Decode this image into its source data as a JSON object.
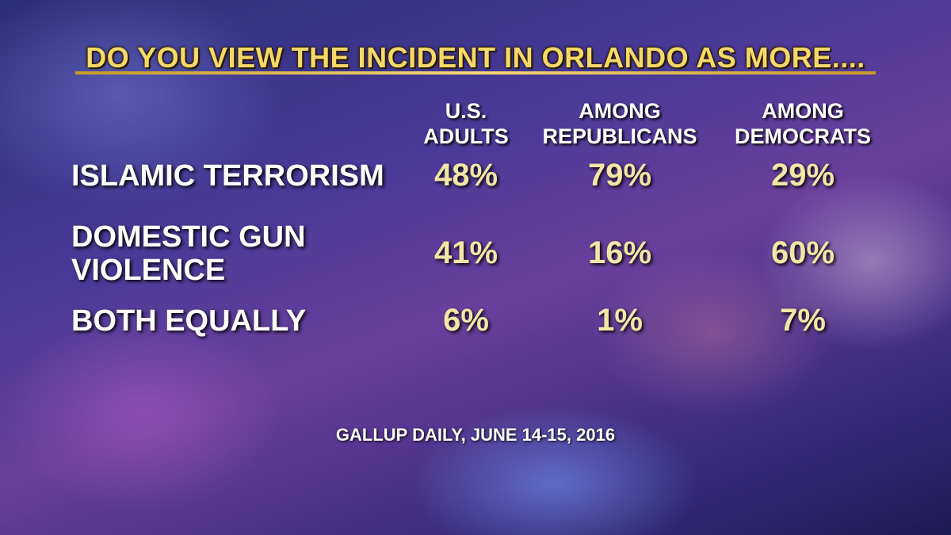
{
  "title": "DO YOU VIEW THE INCIDENT IN ORLANDO AS MORE....",
  "table": {
    "columns": [
      [
        "U.S.",
        "ADULTS"
      ],
      [
        "AMONG",
        "REPUBLICANS"
      ],
      [
        "AMONG",
        "DEMOCRATS"
      ]
    ],
    "rows": [
      {
        "label": [
          "ISLAMIC TERRORISM"
        ],
        "values": [
          "48%",
          "79%",
          "29%"
        ]
      },
      {
        "label": [
          "DOMESTIC GUN",
          "VIOLENCE"
        ],
        "values": [
          "41%",
          "16%",
          "60%"
        ]
      },
      {
        "label": [
          "BOTH EQUALLY"
        ],
        "values": [
          "6%",
          "1%",
          "7%"
        ]
      }
    ]
  },
  "source": "GALLUP DAILY, JUNE 14-15, 2016"
}
